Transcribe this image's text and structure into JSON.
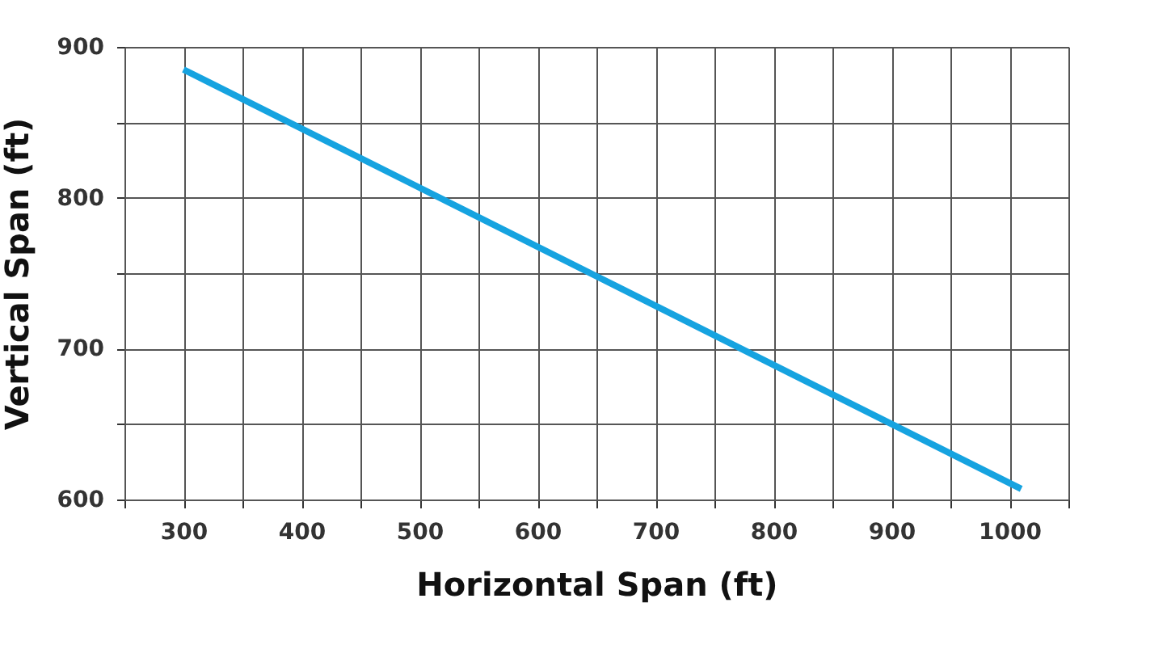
{
  "chart_data": {
    "type": "line",
    "xlabel": "Horizontal Span (ft)",
    "ylabel": "Vertical Span (ft)",
    "x": [
      300,
      650,
      1010
    ],
    "series": [
      {
        "color": "#16a3e0",
        "values": [
          885,
          748,
          607
        ]
      }
    ],
    "xlim": [
      250,
      1050
    ],
    "xticks": [
      {
        "value": 250,
        "label": null
      },
      300,
      {
        "value": 350,
        "label": null
      },
      400,
      {
        "value": 450,
        "label": null
      },
      500,
      {
        "value": 550,
        "label": null
      },
      600,
      {
        "value": 650,
        "label": null
      },
      700,
      {
        "value": 750,
        "label": null
      },
      800,
      {
        "value": 850,
        "label": null
      },
      900,
      {
        "value": 950,
        "label": null
      },
      1000,
      {
        "value": 1050,
        "label": null
      }
    ],
    "ylim": [
      600,
      900
    ],
    "yticks": [
      600,
      {
        "value": 650,
        "label": null
      },
      700,
      {
        "value": 750,
        "label": null
      },
      800,
      {
        "value": 850,
        "label": null
      },
      900
    ],
    "grid": true,
    "marker": "none",
    "line_style": "solid"
  }
}
